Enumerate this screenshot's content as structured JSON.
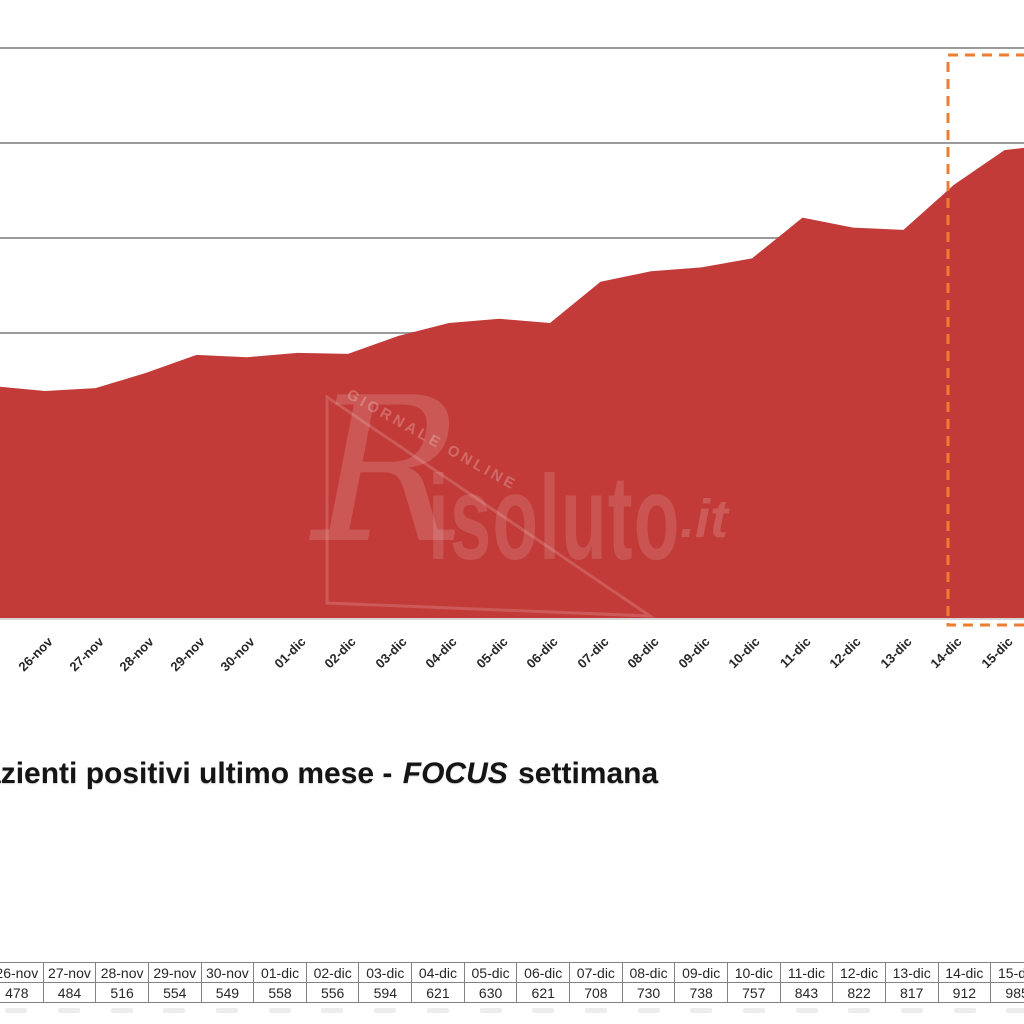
{
  "title": {
    "prefix": "Pazienti positivi ultimo mese - ",
    "emphasis": "FOCUS",
    "suffix": " settimana"
  },
  "watermark": {
    "tagline": "GIORNALE ONLINE",
    "initial": "R",
    "rest": "isoluto",
    "tld": ".it"
  },
  "chart_data": {
    "type": "area",
    "title": "Pazienti positivi ultimo mese - FOCUS settimana",
    "categories": [
      "26-nov",
      "27-nov",
      "28-nov",
      "29-nov",
      "30-nov",
      "01-dic",
      "02-dic",
      "03-dic",
      "04-dic",
      "05-dic",
      "06-dic",
      "07-dic",
      "08-dic",
      "09-dic",
      "10-dic",
      "11-dic",
      "12-dic",
      "13-dic",
      "14-dic",
      "15-dic"
    ],
    "values": [
      478,
      484,
      516,
      554,
      549,
      558,
      556,
      594,
      621,
      630,
      621,
      708,
      730,
      738,
      757,
      843,
      822,
      817,
      912,
      985
    ],
    "xlabel": "",
    "ylabel": "",
    "ylim": [
      0,
      1236
    ],
    "gridlines_visible": [
      600,
      800,
      1000,
      1200
    ],
    "grid": "horizontal",
    "legend": "none",
    "highlight_box": {
      "style": "dashed",
      "covers": [
        "14-dic",
        "15-dic"
      ]
    }
  },
  "table": {
    "note_headers_match_categories": true
  },
  "colors": {
    "area": "#C23B38",
    "highlight": "#ED7D31",
    "gridline": "#9B9B9B",
    "axis": "#C9C9C9",
    "table_border": "#828282",
    "watermark": "#FFFFFF"
  }
}
